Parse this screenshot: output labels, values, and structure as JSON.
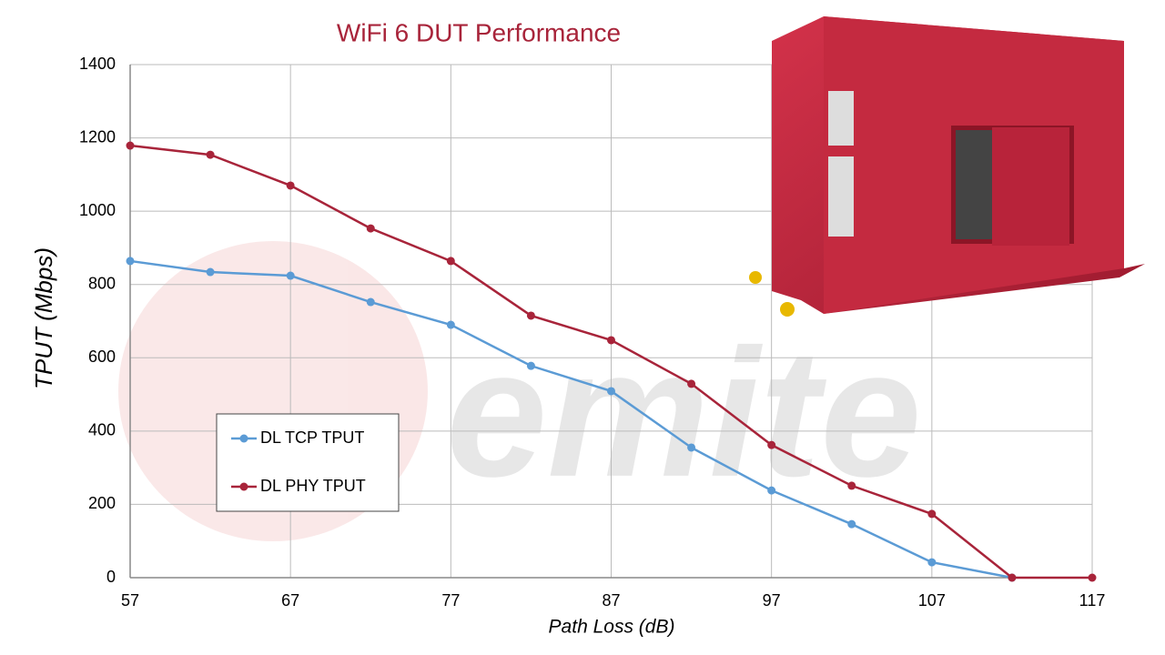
{
  "chart_data": {
    "type": "line",
    "title": "WiFi 6 DUT Performance",
    "watermark": "emite",
    "x_label": "Path Loss (dB)",
    "y_label": "TPUT (Mbps)",
    "x": [
      57,
      62,
      67,
      72,
      77,
      82,
      87,
      92,
      97,
      102,
      107,
      112,
      117
    ],
    "series": [
      {
        "name": "DL TCP TPUT",
        "color": "#5b9bd5",
        "values": [
          864,
          834,
          824,
          752,
          690,
          578,
          509,
          355,
          238,
          146,
          42,
          0,
          null
        ]
      },
      {
        "name": "DL PHY TPUT",
        "color": "#a8243a",
        "values": [
          1179,
          1154,
          1070,
          953,
          864,
          715,
          648,
          529,
          362,
          251,
          174,
          0,
          0
        ]
      }
    ],
    "xlim": [
      57,
      117
    ],
    "xticks": [
      57,
      67,
      77,
      87,
      97,
      107,
      117
    ],
    "ylim": [
      0,
      1400
    ],
    "yticks": [
      0,
      200,
      400,
      600,
      800,
      1000,
      1200,
      1400
    ],
    "grid": true,
    "legend": "lower left"
  }
}
